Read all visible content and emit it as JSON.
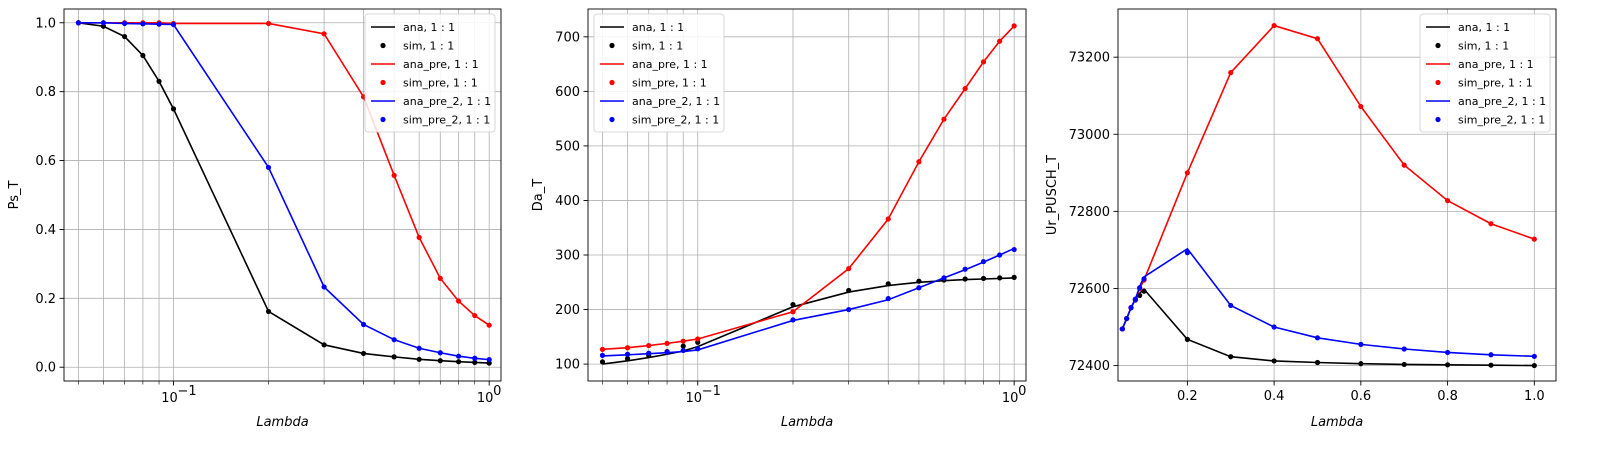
{
  "chart_data": [
    {
      "type": "line",
      "xscale": "log",
      "xlim": [
        0.045,
        1.09
      ],
      "ylim": [
        -0.04,
        1.04
      ],
      "xlabel": "Lambda",
      "ylabel": "Ps_T",
      "xticks": [
        {
          "v": 0.1,
          "b": "10",
          "e": "−1"
        },
        {
          "v": 1.0,
          "b": "10",
          "e": "0"
        }
      ],
      "yticks": [
        0,
        0.2,
        0.4,
        0.6,
        0.8,
        1.0
      ],
      "ytick_labels": [
        "0.0",
        "0.2",
        "0.4",
        "0.6",
        "0.8",
        "1.0"
      ],
      "grid": true,
      "legend_position": "top-right",
      "legend": [
        {
          "label": "ana, 1 : 1",
          "kind": "line",
          "color": "#000000"
        },
        {
          "label": "sim, 1 : 1",
          "kind": "marker",
          "color": "#000000"
        },
        {
          "label": "ana_pre, 1 : 1",
          "kind": "line",
          "color": "#ff0000"
        },
        {
          "label": "sim_pre, 1 : 1",
          "kind": "marker",
          "color": "#ff0000"
        },
        {
          "label": "ana_pre_2, 1 : 1",
          "kind": "line",
          "color": "#0000ff"
        },
        {
          "label": "sim_pre_2, 1 : 1",
          "kind": "marker",
          "color": "#0000ff"
        }
      ],
      "series": [
        {
          "color": "#000000",
          "x": [
            0.05,
            0.06,
            0.07,
            0.08,
            0.09,
            0.1,
            0.2,
            0.3,
            0.4,
            0.5,
            0.6,
            0.7,
            0.8,
            0.9,
            1.0
          ],
          "line": [
            1.0,
            0.99,
            0.96,
            0.905,
            0.83,
            0.75,
            0.162,
            0.065,
            0.04,
            0.03,
            0.023,
            0.019,
            0.016,
            0.014,
            0.012
          ],
          "markers": [
            1.0,
            0.99,
            0.96,
            0.905,
            0.83,
            0.75,
            0.162,
            0.065,
            0.04,
            0.03,
            0.023,
            0.019,
            0.016,
            0.014,
            0.012
          ]
        },
        {
          "color": "#ff0000",
          "x": [
            0.05,
            0.06,
            0.07,
            0.08,
            0.09,
            0.1,
            0.2,
            0.3,
            0.4,
            0.5,
            0.6,
            0.7,
            0.8,
            0.9,
            1.0
          ],
          "line": [
            1.0,
            1.0,
            1.0,
            1.0,
            1.0,
            0.998,
            0.998,
            0.968,
            0.785,
            0.557,
            0.377,
            0.258,
            0.192,
            0.15,
            0.122
          ],
          "markers": [
            1.0,
            1.0,
            1.0,
            1.0,
            1.0,
            0.998,
            0.998,
            0.968,
            0.785,
            0.557,
            0.377,
            0.258,
            0.192,
            0.15,
            0.122
          ]
        },
        {
          "color": "#0000ff",
          "x": [
            0.05,
            0.06,
            0.07,
            0.08,
            0.09,
            0.1,
            0.2,
            0.3,
            0.4,
            0.5,
            0.6,
            0.7,
            0.8,
            0.9,
            1.0
          ],
          "line": [
            1.0,
            1.0,
            0.998,
            0.997,
            0.996,
            0.995,
            0.58,
            0.233,
            0.124,
            0.08,
            0.055,
            0.042,
            0.032,
            0.026,
            0.022
          ],
          "markers": [
            1.0,
            1.0,
            0.998,
            0.997,
            0.996,
            0.995,
            0.58,
            0.233,
            0.124,
            0.08,
            0.055,
            0.042,
            0.032,
            0.026,
            0.022
          ]
        }
      ]
    },
    {
      "type": "line",
      "xscale": "log",
      "xlim": [
        0.045,
        1.09
      ],
      "ylim": [
        69,
        751
      ],
      "xlabel": "Lambda",
      "ylabel": "Da_T",
      "xticks": [
        {
          "v": 0.1,
          "b": "10",
          "e": "−1"
        },
        {
          "v": 1.0,
          "b": "10",
          "e": "0"
        }
      ],
      "yticks": [
        100,
        200,
        300,
        400,
        500,
        600,
        700
      ],
      "ytick_labels": [
        "100",
        "200",
        "300",
        "400",
        "500",
        "600",
        "700"
      ],
      "grid": true,
      "legend_position": "top-left",
      "legend": [
        {
          "label": "ana, 1 : 1",
          "kind": "line",
          "color": "#000000"
        },
        {
          "label": "sim, 1 : 1",
          "kind": "marker",
          "color": "#000000"
        },
        {
          "label": "ana_pre, 1 : 1",
          "kind": "line",
          "color": "#ff0000"
        },
        {
          "label": "sim_pre, 1 : 1",
          "kind": "marker",
          "color": "#ff0000"
        },
        {
          "label": "ana_pre_2, 1 : 1",
          "kind": "line",
          "color": "#0000ff"
        },
        {
          "label": "sim_pre_2, 1 : 1",
          "kind": "marker",
          "color": "#0000ff"
        }
      ],
      "series": [
        {
          "color": "#000000",
          "x": [
            0.05,
            0.06,
            0.07,
            0.08,
            0.09,
            0.1,
            0.2,
            0.3,
            0.4,
            0.5,
            0.6,
            0.7,
            0.8,
            0.9,
            1.0
          ],
          "line": [
            100,
            106,
            112,
            118,
            124,
            132,
            205,
            232,
            244,
            250,
            253,
            255,
            256,
            257,
            258
          ],
          "markers": [
            104,
            110,
            116,
            123,
            133,
            140,
            209,
            235,
            247,
            252,
            254,
            256,
            257,
            258,
            259
          ]
        },
        {
          "color": "#ff0000",
          "x": [
            0.05,
            0.06,
            0.07,
            0.08,
            0.09,
            0.1,
            0.2,
            0.3,
            0.4,
            0.5,
            0.6,
            0.7,
            0.8,
            0.9,
            1.0
          ],
          "line": [
            127,
            130,
            134,
            138,
            142,
            146,
            196,
            275,
            366,
            471,
            549,
            605,
            654,
            692,
            720
          ],
          "markers": [
            127,
            130,
            134,
            138,
            142,
            146,
            196,
            275,
            366,
            471,
            549,
            605,
            654,
            692,
            720
          ]
        },
        {
          "color": "#0000ff",
          "x": [
            0.05,
            0.06,
            0.07,
            0.08,
            0.09,
            0.1,
            0.2,
            0.3,
            0.4,
            0.5,
            0.6,
            0.7,
            0.8,
            0.9,
            1.0
          ],
          "line": [
            115,
            117,
            119,
            121,
            123,
            126,
            180,
            200,
            218,
            240,
            258,
            273,
            287,
            300,
            312
          ],
          "markers": [
            116,
            118,
            120,
            122,
            125,
            128,
            181,
            200,
            220,
            240,
            258,
            274,
            288,
            300,
            310
          ]
        }
      ]
    },
    {
      "type": "line",
      "xscale": "linear",
      "xlim": [
        0.04,
        1.05
      ],
      "ylim": [
        72360,
        73325
      ],
      "xlabel": "Lambda",
      "ylabel": "Ur_PUSCH_T",
      "xticks": [
        {
          "v": 0.2,
          "t": "0.2"
        },
        {
          "v": 0.4,
          "t": "0.4"
        },
        {
          "v": 0.6,
          "t": "0.6"
        },
        {
          "v": 0.8,
          "t": "0.8"
        },
        {
          "v": 1.0,
          "t": "1.0"
        }
      ],
      "yticks": [
        72400,
        72600,
        72800,
        73000,
        73200
      ],
      "ytick_labels": [
        "72400",
        "72600",
        "72800",
        "73000",
        "73200"
      ],
      "grid": true,
      "legend_position": "top-right",
      "legend": [
        {
          "label": "ana, 1 : 1",
          "kind": "line",
          "color": "#000000"
        },
        {
          "label": "sim, 1 : 1",
          "kind": "marker",
          "color": "#000000"
        },
        {
          "label": "ana_pre, 1 : 1",
          "kind": "line",
          "color": "#ff0000"
        },
        {
          "label": "sim_pre, 1 : 1",
          "kind": "marker",
          "color": "#ff0000"
        },
        {
          "label": "ana_pre_2, 1 : 1",
          "kind": "line",
          "color": "#0000ff"
        },
        {
          "label": "sim_pre_2, 1 : 1",
          "kind": "marker",
          "color": "#0000ff"
        }
      ],
      "series": [
        {
          "color": "#000000",
          "x": [
            0.05,
            0.06,
            0.07,
            0.08,
            0.09,
            0.1,
            0.2,
            0.3,
            0.4,
            0.5,
            0.6,
            0.7,
            0.8,
            0.9,
            1.0
          ],
          "line": [
            72495,
            72522,
            72550,
            72572,
            72588,
            72598,
            72468,
            72423,
            72412,
            72408,
            72405,
            72403,
            72402,
            72401,
            72400
          ],
          "markers": [
            72495,
            72522,
            72550,
            72570,
            72582,
            72593,
            72468,
            72423,
            72412,
            72408,
            72405,
            72403,
            72402,
            72401,
            72400
          ]
        },
        {
          "color": "#ff0000",
          "x": [
            0.05,
            0.06,
            0.07,
            0.08,
            0.09,
            0.1,
            0.2,
            0.3,
            0.4,
            0.5,
            0.6,
            0.7,
            0.8,
            0.9,
            1.0
          ],
          "line": [
            72495,
            72522,
            72550,
            72572,
            72600,
            72622,
            72900,
            73160,
            73282,
            73248,
            73072,
            72920,
            72828,
            72768,
            72728
          ],
          "markers": [
            72495,
            72522,
            72550,
            72572,
            72600,
            72622,
            72900,
            73160,
            73282,
            73248,
            73072,
            72920,
            72828,
            72768,
            72728
          ]
        },
        {
          "color": "#0000ff",
          "x": [
            0.05,
            0.06,
            0.07,
            0.08,
            0.09,
            0.1,
            0.2,
            0.3,
            0.4,
            0.5,
            0.6,
            0.7,
            0.8,
            0.9,
            1.0
          ],
          "line": [
            72495,
            72522,
            72550,
            72572,
            72605,
            72630,
            72703,
            72556,
            72500,
            72472,
            72455,
            72443,
            72434,
            72428,
            72424
          ],
          "markers": [
            72495,
            72522,
            72550,
            72572,
            72602,
            72625,
            72693,
            72556,
            72500,
            72472,
            72455,
            72443,
            72434,
            72428,
            72424
          ]
        }
      ]
    }
  ]
}
